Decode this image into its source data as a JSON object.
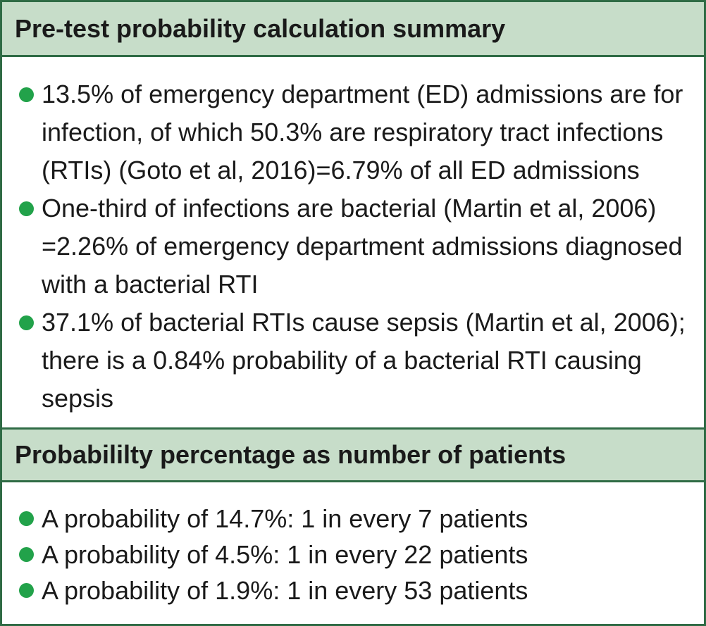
{
  "colors": {
    "border": "#2f6b45",
    "header_bg": "#c7ddc9",
    "bullet": "#22a24a",
    "text": "#1a1a1a"
  },
  "sections": [
    {
      "title": "Pre-test probability calculation summary",
      "items": [
        "13.5% of emergency department (ED) admissions are for infection, of which 50.3% are respiratory tract infections (RTIs) (Goto et al, 2016)=6.79% of all ED admissions",
        "One-third of infections are bacterial (Martin et al, 2006) =2.26% of emergency department admissions diagnosed with a bacterial RTI",
        "37.1% of bacterial RTIs cause sepsis (Martin et al, 2006); there is a 0.84% probability of a bacterial RTI causing sepsis"
      ]
    },
    {
      "title": "Probabililty percentage as number of patients",
      "items": [
        "A probability of 14.7%: 1 in every 7 patients",
        "A probability of 4.5%: 1 in every 22 patients",
        "A probability of 1.9%: 1 in every 53 patients"
      ]
    }
  ]
}
